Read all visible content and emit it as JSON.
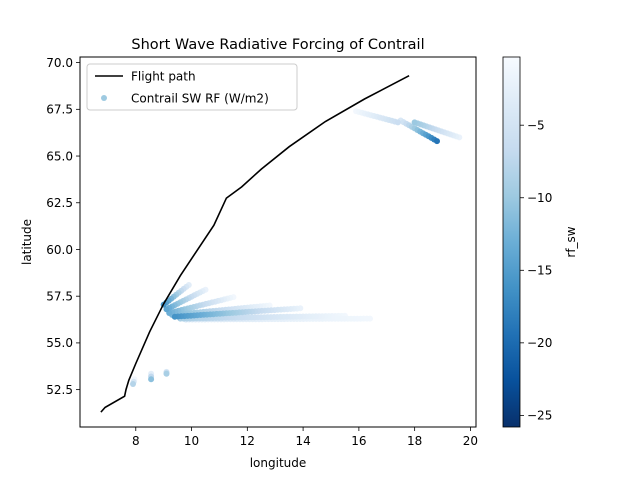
{
  "chart_data": {
    "type": "scatter",
    "title": "Short Wave Radiative Forcing of Contrail",
    "xlabel": "longitude",
    "ylabel": "latitude",
    "xlim": [
      6.0,
      20.2
    ],
    "ylim": [
      50.5,
      70.3
    ],
    "xticks": [
      8,
      10,
      12,
      14,
      16,
      18,
      20
    ],
    "yticks": [
      52.5,
      55.0,
      57.5,
      60.0,
      62.5,
      65.0,
      67.5,
      70.0
    ],
    "grid": false,
    "legend": {
      "position": "upper-left",
      "entries": [
        "Flight path",
        "Contrail SW RF (W/m2)"
      ]
    },
    "colorbar": {
      "label": "rf_sw",
      "colormap": "Blues_r",
      "range": [
        -25.8,
        -0.3
      ],
      "ticks": [
        -5,
        -10,
        -15,
        -20,
        -25
      ],
      "tick_labels": [
        "−5",
        "−10",
        "−15",
        "−20",
        "−25"
      ]
    },
    "flight_path": {
      "name": "Flight path",
      "color": "#000000",
      "x": [
        6.75,
        6.9,
        7.6,
        7.65,
        7.75,
        8.0,
        8.5,
        9.0,
        9.6,
        10.2,
        10.8,
        11.25,
        11.8,
        12.5,
        13.5,
        14.8,
        16.2,
        17.8
      ],
      "y": [
        51.3,
        51.55,
        52.15,
        52.5,
        53.0,
        53.9,
        55.6,
        57.1,
        58.6,
        59.95,
        61.3,
        62.75,
        63.35,
        64.3,
        65.5,
        66.85,
        68.05,
        69.3
      ]
    },
    "contrail_series": {
      "name": "Contrail SW RF (W/m2)",
      "branches": [
        {
          "x0": 7.9,
          "y0": 52.8,
          "x1": 7.95,
          "y1": 53.05,
          "v0": -8,
          "v1": -1
        },
        {
          "x0": 8.55,
          "y0": 53.05,
          "x1": 8.55,
          "y1": 53.35,
          "v0": -11,
          "v1": -3
        },
        {
          "x0": 9.1,
          "y0": 53.35,
          "x1": 9.1,
          "y1": 53.45,
          "v0": -9,
          "v1": -4
        },
        {
          "x0": 9.0,
          "y0": 57.05,
          "x1": 9.9,
          "y1": 58.1,
          "v0": -16,
          "v1": -3
        },
        {
          "x0": 9.1,
          "y0": 56.8,
          "x1": 10.5,
          "y1": 57.85,
          "v0": -14,
          "v1": -2
        },
        {
          "x0": 9.2,
          "y0": 56.6,
          "x1": 11.5,
          "y1": 57.45,
          "v0": -13,
          "v1": -1
        },
        {
          "x0": 9.3,
          "y0": 56.5,
          "x1": 12.8,
          "y1": 57.0,
          "v0": -12,
          "v1": -1
        },
        {
          "x0": 9.4,
          "y0": 56.4,
          "x1": 13.9,
          "y1": 56.85,
          "v0": -16,
          "v1": -2
        },
        {
          "x0": 9.6,
          "y0": 56.3,
          "x1": 15.5,
          "y1": 56.45,
          "v0": -9,
          "v1": -1
        },
        {
          "x0": 9.8,
          "y0": 56.25,
          "x1": 16.4,
          "y1": 56.3,
          "v0": -4,
          "v1": -1
        },
        {
          "x0": 15.9,
          "y0": 67.4,
          "x1": 17.4,
          "y1": 66.8,
          "v0": -1,
          "v1": -6
        },
        {
          "x0": 17.5,
          "y0": 66.9,
          "x1": 18.8,
          "y1": 65.8,
          "v0": -4,
          "v1": -19
        },
        {
          "x0": 18.0,
          "y0": 66.8,
          "x1": 19.6,
          "y1": 66.0,
          "v0": -10,
          "v1": -2
        }
      ]
    }
  }
}
